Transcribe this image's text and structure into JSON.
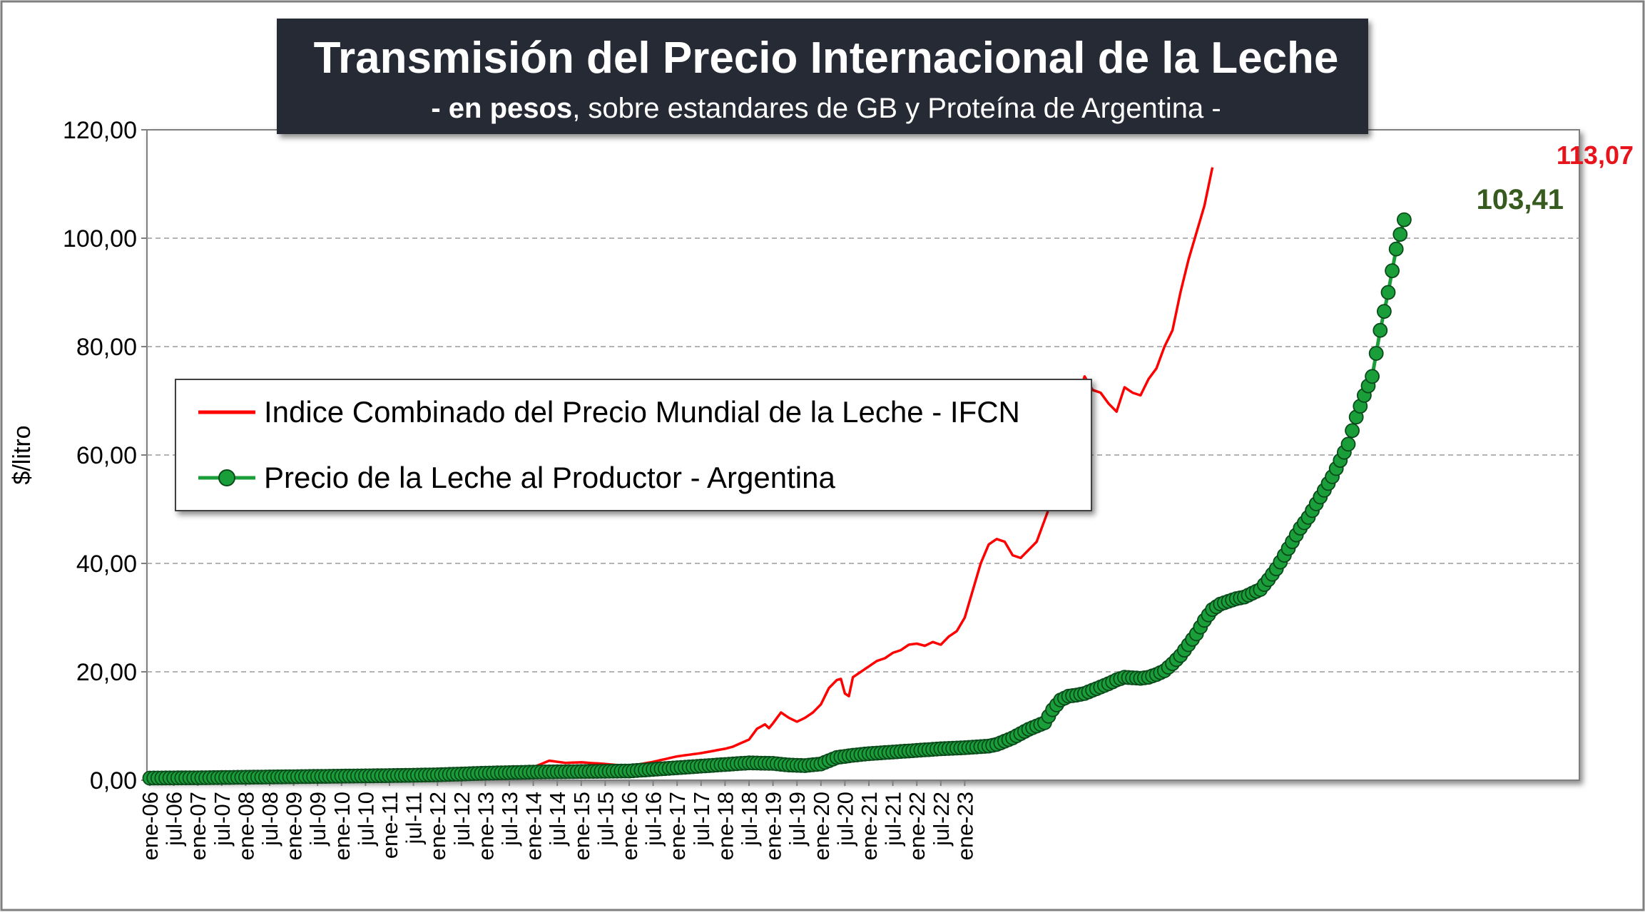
{
  "chart_data": {
    "type": "line",
    "title": "Transmisión del Precio Internacional de la Leche",
    "subtitle_bold": "- en pesos",
    "subtitle_rest": ", sobre estandares de GB y Proteína de  Argentina -",
    "ylabel": "$/litro",
    "xlabel": "",
    "ylim": [
      0,
      120
    ],
    "yticks": [
      "0,00",
      "20,00",
      "40,00",
      "60,00",
      "80,00",
      "100,00",
      "120,00"
    ],
    "xtick_labels": [
      "ene-06",
      "jul-06",
      "ene-07",
      "jul-07",
      "ene-08",
      "jul-08",
      "ene-09",
      "jul-09",
      "ene-10",
      "jul-10",
      "ene-11",
      "jul-11",
      "ene-12",
      "jul-12",
      "ene-13",
      "jul-13",
      "ene-14",
      "jul-14",
      "ene-15",
      "jul-15",
      "ene-16",
      "jul-16",
      "ene-17",
      "jul-17",
      "ene-18",
      "jul-18",
      "ene-19",
      "jul-19",
      "ene-20",
      "jul-20",
      "ene-21",
      "jul-21",
      "ene-22",
      "jul-22",
      "ene-23"
    ],
    "grid": "horizontal dashed",
    "legend_position": "left-middle",
    "series": [
      {
        "name": "Indice Combinado del Precio Mundial de la Leche - IFCN",
        "color": "#ff0000",
        "marker": "none",
        "anchors": [
          [
            0,
            0.5
          ],
          [
            12,
            0.6
          ],
          [
            24,
            0.8
          ],
          [
            36,
            0.9
          ],
          [
            48,
            1.0
          ],
          [
            60,
            1.2
          ],
          [
            72,
            1.5
          ],
          [
            84,
            1.7
          ],
          [
            90,
            2.0
          ],
          [
            96,
            2.4
          ],
          [
            100,
            3.6
          ],
          [
            104,
            3.2
          ],
          [
            108,
            3.3
          ],
          [
            114,
            3.0
          ],
          [
            120,
            2.6
          ],
          [
            126,
            3.4
          ],
          [
            132,
            4.4
          ],
          [
            138,
            5.0
          ],
          [
            144,
            5.8
          ],
          [
            146,
            6.2
          ],
          [
            150,
            7.5
          ],
          [
            152,
            9.5
          ],
          [
            154,
            10.3
          ],
          [
            155,
            9.6
          ],
          [
            156,
            10.5
          ],
          [
            158,
            12.5
          ],
          [
            160,
            11.5
          ],
          [
            162,
            10.8
          ],
          [
            164,
            11.5
          ],
          [
            166,
            12.5
          ],
          [
            168,
            14.0
          ],
          [
            170,
            17.0
          ],
          [
            172,
            18.5
          ],
          [
            173,
            18.7
          ],
          [
            174,
            16.0
          ],
          [
            175,
            15.5
          ],
          [
            176,
            19.0
          ],
          [
            178,
            20.0
          ],
          [
            180,
            21.0
          ],
          [
            182,
            22.0
          ],
          [
            184,
            22.5
          ],
          [
            186,
            23.5
          ],
          [
            188,
            24.0
          ],
          [
            190,
            25.0
          ],
          [
            192,
            25.2
          ],
          [
            194,
            24.8
          ],
          [
            196,
            25.5
          ],
          [
            198,
            25.0
          ],
          [
            200,
            26.5
          ],
          [
            202,
            27.5
          ],
          [
            204,
            30.0
          ],
          [
            206,
            35.0
          ],
          [
            208,
            40.0
          ],
          [
            210,
            43.5
          ],
          [
            212,
            44.5
          ],
          [
            214,
            44.0
          ],
          [
            216,
            41.5
          ],
          [
            218,
            41.0
          ],
          [
            220,
            42.5
          ],
          [
            222,
            44.0
          ],
          [
            224,
            48.0
          ],
          [
            226,
            52.0
          ],
          [
            228,
            57.0
          ],
          [
            230,
            65.0
          ],
          [
            232,
            70.0
          ],
          [
            234,
            74.5
          ],
          [
            236,
            72.0
          ],
          [
            238,
            71.5
          ],
          [
            240,
            69.5
          ],
          [
            242,
            68.0
          ],
          [
            244,
            72.5
          ],
          [
            246,
            71.5
          ],
          [
            248,
            71.0
          ],
          [
            250,
            74.0
          ],
          [
            252,
            76.0
          ],
          [
            254,
            80.0
          ],
          [
            256,
            83.0
          ],
          [
            258,
            90.0
          ],
          [
            260,
            96.0
          ],
          [
            262,
            101.0
          ],
          [
            264,
            106.0
          ],
          [
            266,
            113.07
          ]
        ],
        "label_last": "113,07"
      },
      {
        "name": "Precio de la Leche al Productor - Argentina",
        "color": "#1a9e3a",
        "marker": "circle",
        "anchors": [
          [
            0,
            0.4
          ],
          [
            12,
            0.45
          ],
          [
            24,
            0.55
          ],
          [
            30,
            0.6
          ],
          [
            36,
            0.65
          ],
          [
            48,
            0.75
          ],
          [
            60,
            0.85
          ],
          [
            72,
            1.0
          ],
          [
            84,
            1.3
          ],
          [
            96,
            1.5
          ],
          [
            108,
            1.6
          ],
          [
            120,
            1.7
          ],
          [
            126,
            2.0
          ],
          [
            132,
            2.3
          ],
          [
            138,
            2.6
          ],
          [
            144,
            2.9
          ],
          [
            150,
            3.2
          ],
          [
            156,
            3.1
          ],
          [
            160,
            2.8
          ],
          [
            164,
            2.7
          ],
          [
            168,
            3.0
          ],
          [
            170,
            3.6
          ],
          [
            172,
            4.2
          ],
          [
            176,
            4.6
          ],
          [
            180,
            4.9
          ],
          [
            186,
            5.2
          ],
          [
            192,
            5.5
          ],
          [
            198,
            5.8
          ],
          [
            204,
            6.0
          ],
          [
            210,
            6.3
          ],
          [
            212,
            6.6
          ],
          [
            214,
            7.2
          ],
          [
            216,
            7.8
          ],
          [
            218,
            8.6
          ],
          [
            220,
            9.4
          ],
          [
            222,
            10.0
          ],
          [
            224,
            10.6
          ],
          [
            226,
            13.0
          ],
          [
            228,
            14.8
          ],
          [
            230,
            15.5
          ],
          [
            232,
            15.7
          ],
          [
            234,
            16.0
          ],
          [
            236,
            16.6
          ],
          [
            238,
            17.2
          ],
          [
            240,
            17.8
          ],
          [
            242,
            18.5
          ],
          [
            244,
            19.0
          ],
          [
            246,
            18.9
          ],
          [
            248,
            18.8
          ],
          [
            250,
            19.0
          ],
          [
            252,
            19.5
          ],
          [
            254,
            20.2
          ],
          [
            256,
            21.5
          ],
          [
            258,
            23.0
          ],
          [
            260,
            25.0
          ],
          [
            262,
            27.0
          ],
          [
            264,
            29.5
          ],
          [
            266,
            31.5
          ],
          [
            268,
            32.5
          ],
          [
            270,
            33.0
          ],
          [
            272,
            33.5
          ],
          [
            274,
            33.8
          ],
          [
            276,
            34.5
          ],
          [
            278,
            35.2
          ],
          [
            280,
            37.0
          ],
          [
            282,
            39.0
          ],
          [
            284,
            41.5
          ],
          [
            286,
            44.0
          ],
          [
            288,
            46.5
          ],
          [
            290,
            48.5
          ],
          [
            292,
            51.0
          ],
          [
            294,
            53.5
          ],
          [
            296,
            56.0
          ],
          [
            298,
            59.0
          ],
          [
            300,
            62.0
          ],
          [
            302,
            67.0
          ],
          [
            304,
            71.0
          ],
          [
            306,
            74.5
          ],
          [
            308,
            83.0
          ],
          [
            310,
            90.0
          ],
          [
            312,
            98.0
          ],
          [
            314,
            103.41
          ]
        ],
        "label_last": "103,41"
      }
    ]
  }
}
